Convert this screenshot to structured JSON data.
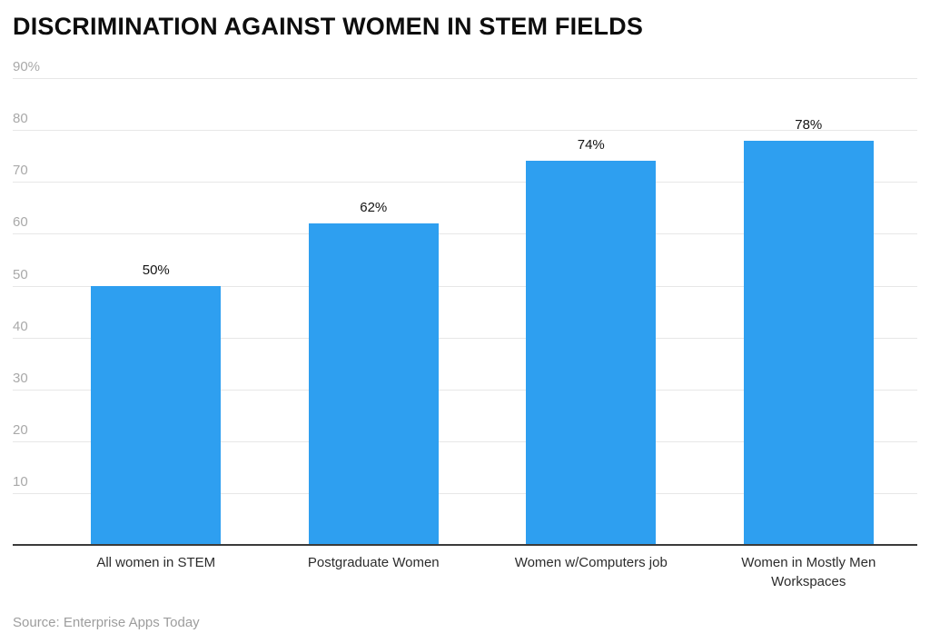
{
  "chart_data": {
    "type": "bar",
    "title": "DISCRIMINATION AGAINST WOMEN IN STEM FIELDS",
    "categories": [
      "All women in STEM",
      "Postgraduate Women",
      "Women w/Computers job",
      "Women in Mostly Men Workspaces"
    ],
    "values": [
      50,
      62,
      74,
      78
    ],
    "value_labels": [
      "50%",
      "62%",
      "74%",
      "78%"
    ],
    "xlabel": "",
    "ylabel": "",
    "ylim": [
      0,
      90
    ],
    "y_ticks": [
      10,
      20,
      30,
      40,
      50,
      60,
      70,
      80,
      90
    ],
    "y_tick_labels": [
      "10",
      "20",
      "30",
      "40",
      "50",
      "60",
      "70",
      "80",
      "90%"
    ],
    "grid": "horizontal",
    "legend": "none",
    "bar_color": "#2e9ff0"
  },
  "source": {
    "text": "Source: Enterprise Apps Today"
  }
}
